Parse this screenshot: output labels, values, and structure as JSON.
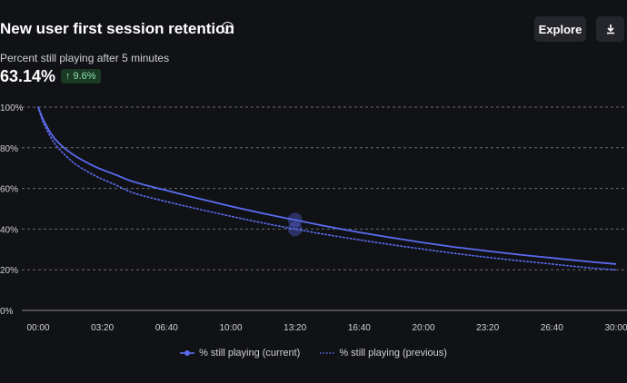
{
  "header": {
    "title": "New user first session retention",
    "explore_label": "Explore",
    "subtitle": "Percent still playing after 5 minutes",
    "big_value": "63.14%",
    "delta": "9.6%"
  },
  "colors": {
    "current": "#5b6cf0",
    "previous": "#5b6cf0",
    "delta_bg": "#1b3a26",
    "delta_text": "#8ee0a8"
  },
  "chart_data": {
    "type": "line",
    "xlabel": "",
    "ylabel": "",
    "x_unit": "seconds",
    "xlim": [
      0,
      1800
    ],
    "ylim": [
      0,
      100
    ],
    "x_tick_values": [
      0,
      200,
      400,
      600,
      800,
      1000,
      1200,
      1400,
      1600,
      1800
    ],
    "x_tick_labels": [
      "00:00",
      "03:20",
      "06:40",
      "10:00",
      "13:20",
      "16:40",
      "20:00",
      "23:20",
      "26:40",
      "30:00"
    ],
    "y_tick_values": [
      0,
      20,
      40,
      60,
      80,
      100
    ],
    "y_tick_labels": [
      "0%",
      "20%",
      "40%",
      "60%",
      "80%",
      "100%"
    ],
    "grid": true,
    "legend_position": "bottom",
    "hover_x": 800,
    "series": [
      {
        "name": "% still playing (current)",
        "style": "solid",
        "x": [
          0,
          10,
          20,
          40,
          60,
          90,
          120,
          180,
          240,
          300,
          400,
          500,
          600,
          700,
          800,
          900,
          1000,
          1100,
          1200,
          1300,
          1400,
          1500,
          1600,
          1700,
          1800
        ],
        "values": [
          100,
          96,
          92.5,
          87,
          83,
          78.8,
          75.5,
          70.5,
          66.8,
          63.14,
          59,
          55,
          51.2,
          47.7,
          44.5,
          41.3,
          38.4,
          35.8,
          33.3,
          31.1,
          29.2,
          27.4,
          25.8,
          24.2,
          22.8
        ]
      },
      {
        "name": "% still playing (previous)",
        "style": "dotted",
        "x": [
          0,
          10,
          20,
          40,
          60,
          90,
          120,
          180,
          240,
          300,
          400,
          500,
          600,
          700,
          800,
          900,
          1000,
          1100,
          1200,
          1300,
          1400,
          1500,
          1600,
          1700,
          1800
        ],
        "values": [
          100,
          95,
          91,
          85,
          80.3,
          75.5,
          71.5,
          66,
          61.8,
          57.6,
          53.5,
          49.8,
          46.3,
          43,
          40,
          37.2,
          34.7,
          32.3,
          30.1,
          28,
          26.1,
          24.4,
          22.8,
          21.2,
          19.9
        ]
      }
    ]
  }
}
